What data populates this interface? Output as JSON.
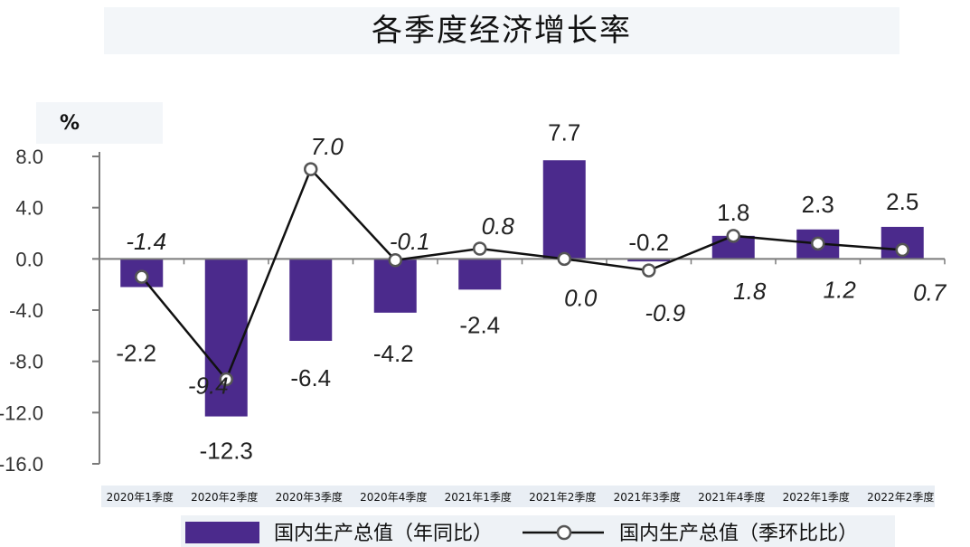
{
  "chart_data": {
    "type": "bar",
    "title": "各季度经济增长率",
    "ylabel": "%",
    "ylim": [
      -16,
      8
    ],
    "yticks": [
      "8.0",
      "4.0",
      "0.0",
      "-4.0",
      "-8.0",
      "-12.0",
      "-16.0"
    ],
    "ytick_values": [
      8,
      4,
      0,
      -4,
      -8,
      -12,
      -16
    ],
    "categories": [
      "2020年1季度",
      "2020年2季度",
      "2020年3季度",
      "2020年4季度",
      "2021年1季度",
      "2021年2季度",
      "2021年3季度",
      "2021年4季度",
      "2022年1季度",
      "2022年2季度"
    ],
    "series": [
      {
        "name": "国内生产总值（年同比）",
        "type": "bar",
        "values": [
          -2.2,
          -12.3,
          -6.4,
          -4.2,
          -2.4,
          7.7,
          -0.2,
          1.8,
          2.3,
          2.5
        ],
        "labels": [
          "-2.2",
          "-12.3",
          "-6.4",
          "-4.2",
          "-2.4",
          "7.7",
          "-0.2",
          "1.8",
          "2.3",
          "2.5"
        ]
      },
      {
        "name": "国内生产总值（季环比比）",
        "type": "line",
        "values": [
          -1.4,
          -9.4,
          7.0,
          -0.1,
          0.8,
          0.0,
          -0.9,
          1.8,
          1.2,
          0.7
        ],
        "labels": [
          "-1.4",
          "-9.4",
          "7.0",
          "-0.1",
          "0.8",
          "0.0",
          "-0.9",
          "1.8",
          "1.2",
          "0.7"
        ]
      }
    ],
    "colors": {
      "bar": "#4b2a8c",
      "line": "#111111",
      "marker_fill": "#ffffff",
      "marker_stroke": "#555555",
      "axis": "#7a7a7a"
    },
    "grid": false,
    "legend_position": "bottom"
  }
}
